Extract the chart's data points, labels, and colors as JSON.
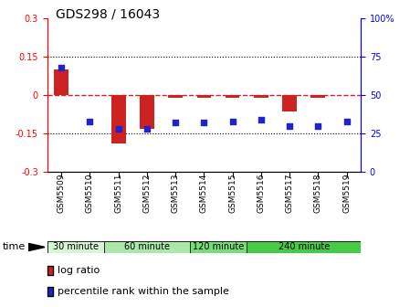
{
  "title": "GDS298 / 16043",
  "samples": [
    "GSM5509",
    "GSM5510",
    "GSM5511",
    "GSM5512",
    "GSM5513",
    "GSM5514",
    "GSM5515",
    "GSM5516",
    "GSM5517",
    "GSM5518",
    "GSM5519"
  ],
  "log_ratio": [
    0.1,
    0.0,
    -0.19,
    -0.13,
    -0.01,
    -0.01,
    -0.01,
    -0.01,
    -0.065,
    -0.01,
    0.0
  ],
  "percentile_rank": [
    68,
    33,
    28,
    28,
    32,
    32,
    33,
    34,
    30,
    30,
    33
  ],
  "ylim_left": [
    -0.3,
    0.3
  ],
  "ylim_right": [
    0,
    100
  ],
  "yticks_left": [
    -0.3,
    -0.15,
    0,
    0.15,
    0.3
  ],
  "yticks_right": [
    0,
    25,
    50,
    75,
    100
  ],
  "groups": [
    {
      "label": "30 minute",
      "start": 0,
      "end": 2,
      "color": "#d6f5d6"
    },
    {
      "label": "60 minute",
      "start": 2,
      "end": 5,
      "color": "#aae8aa"
    },
    {
      "label": "120 minute",
      "start": 5,
      "end": 7,
      "color": "#77dd77"
    },
    {
      "label": "240 minute",
      "start": 7,
      "end": 11,
      "color": "#44cc44"
    }
  ],
  "bar_color": "#cc2222",
  "dot_color": "#2222cc",
  "zero_line_color": "#cc2222",
  "bg_color": "#ffffff",
  "time_label": "time",
  "legend_log_ratio": "log ratio",
  "legend_percentile": "percentile rank within the sample"
}
